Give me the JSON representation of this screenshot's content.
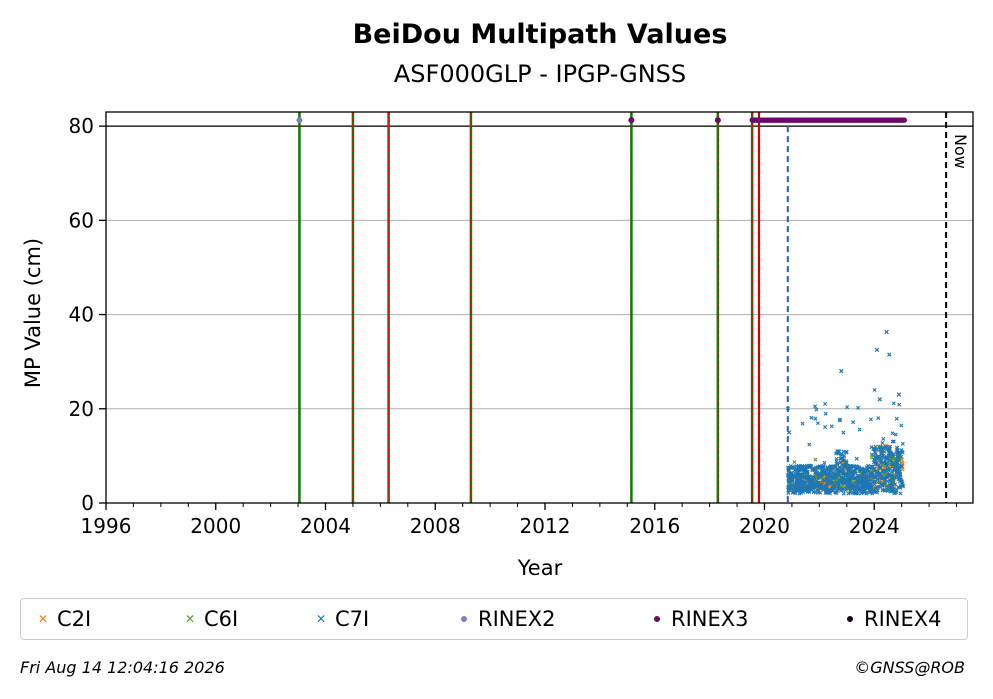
{
  "chart_data": {
    "type": "scatter",
    "title": "BeiDou Multipath Values",
    "subtitle": "ASF000GLP - IPGP-GNSS",
    "xlabel": "Year",
    "ylabel": "MP Value (cm)",
    "xlim": [
      1996,
      2027.6
    ],
    "ylim": [
      0,
      83
    ],
    "x_ticks": [
      1996,
      2000,
      2004,
      2008,
      2012,
      2016,
      2020,
      2024
    ],
    "x_tick_labels": [
      "1996",
      "2000",
      "2004",
      "2008",
      "2012",
      "2016",
      "2020",
      "2024"
    ],
    "y_ticks": [
      0,
      20,
      40,
      60,
      80
    ],
    "y_tick_labels": [
      "0",
      "20",
      "40",
      "60",
      "80"
    ],
    "grid": "horizontal",
    "reference_line_y": 80,
    "now_label": "Now",
    "now_year": 2026.62,
    "vertical_lines": [
      {
        "x": 2003.05,
        "style": "green-red-dashed"
      },
      {
        "x": 2005.0,
        "style": "green-red-dashed"
      },
      {
        "x": 2006.3,
        "style": "green-red-dashed"
      },
      {
        "x": 2009.3,
        "style": "green-red-dashed"
      },
      {
        "x": 2015.15,
        "style": "green-red-dashed"
      },
      {
        "x": 2018.3,
        "style": "green-red-dashed"
      },
      {
        "x": 2019.55,
        "style": "green-red-dashed"
      },
      {
        "x": 2019.8,
        "style": "red-solid"
      },
      {
        "x": 2020.85,
        "style": "blue-dashed"
      }
    ],
    "rinex_markers": [
      {
        "name": "RINEX2",
        "x": [
          2003.05
        ]
      },
      {
        "name": "RINEX3",
        "x": [
          2015.15,
          2018.3
        ]
      },
      {
        "name": "RINEX3",
        "range": [
          2019.55,
          2025.1
        ]
      }
    ],
    "series": [
      {
        "name": "C2I",
        "x_range": [
          2020.85,
          2025.05
        ],
        "typical": [
          3,
          6
        ],
        "max": 15
      },
      {
        "name": "C6I",
        "x_range": [
          2020.85,
          2025.05
        ],
        "typical": [
          3,
          7
        ],
        "max": 14
      },
      {
        "name": "C7I",
        "x_range": [
          2020.85,
          2025.05
        ],
        "typical": [
          2,
          8
        ],
        "max": 36.3,
        "outliers": [
          [
            2020.9,
            15
          ],
          [
            2022.8,
            28
          ],
          [
            2024.1,
            32.5
          ],
          [
            2024.45,
            36.3
          ],
          [
            2024.55,
            31.5
          ],
          [
            2024.9,
            23
          ],
          [
            2024.2,
            22
          ]
        ]
      }
    ],
    "legend": {
      "placement": "bottom",
      "entries": [
        {
          "name": "C2I",
          "color": "#ff7f0e",
          "marker": "x"
        },
        {
          "name": "C6I",
          "color": "#5aa02c",
          "marker": "x"
        },
        {
          "name": "C7I",
          "color": "#1f77b4",
          "marker": "x"
        },
        {
          "name": "RINEX2",
          "color": "#7e7ec8",
          "marker": "dot"
        },
        {
          "name": "RINEX3",
          "color": "#6a0a6a",
          "marker": "dot"
        },
        {
          "name": "RINEX4",
          "color": "#1a001a",
          "marker": "dot"
        }
      ]
    }
  },
  "footer": {
    "timestamp": "Fri Aug 14 12:04:16 2026",
    "credit": "©GNSS@ROB"
  }
}
